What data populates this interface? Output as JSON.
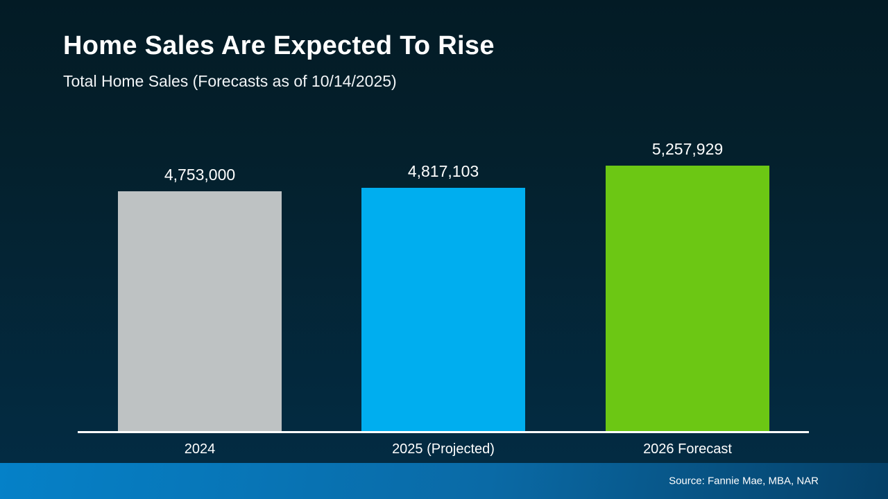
{
  "header": {
    "title": "Home Sales Are Expected To Rise",
    "subtitle": "Total Home Sales (Forecasts as of 10/14/2025)"
  },
  "footer": {
    "source": "Source: Fannie Mae, MBA, NAR"
  },
  "colors": {
    "background_top": "#031B25",
    "background_bottom": "#032C44",
    "axis_line": "#FFFFFF",
    "footer_gradient_left": "#0581C8",
    "footer_gradient_right": "#054067",
    "text": "#FFFFFF"
  },
  "chart_data": {
    "type": "bar",
    "title": "Home Sales Are Expected To Rise",
    "subtitle": "Total Home Sales (Forecasts as of 10/14/2025)",
    "categories": [
      "2024",
      "2025 (Projected)",
      "2026 Forecast"
    ],
    "values": [
      4753000,
      4817103,
      5257929
    ],
    "value_labels": [
      "4,753,000",
      "4,817,103",
      "5,257,929"
    ],
    "bar_colors": [
      "#BEC2C3",
      "#00AEEF",
      "#6CC714"
    ],
    "xlabel": "",
    "ylabel": "",
    "ylim": [
      0,
      5257929
    ],
    "grid": false,
    "legend": false,
    "source": "Source: Fannie Mae, MBA, NAR"
  }
}
